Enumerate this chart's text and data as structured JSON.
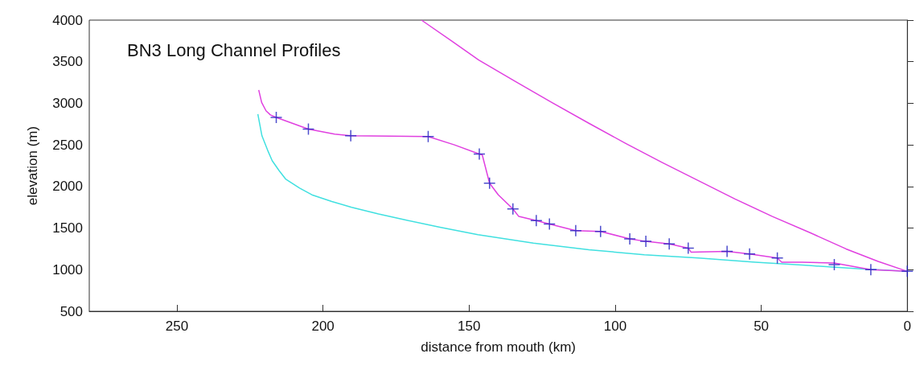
{
  "chart_data": {
    "type": "line",
    "title": "BN3 Long Channel Profiles",
    "xlabel": "distance from mouth (km)",
    "ylabel": "elevation (m)",
    "xlim": [
      280,
      0
    ],
    "xticks": [
      250,
      200,
      150,
      100,
      50,
      0
    ],
    "ylim": [
      500,
      4000
    ],
    "yticks": [
      500,
      1000,
      1500,
      2000,
      2500,
      3000,
      3500,
      4000
    ],
    "grid": false,
    "series": [
      {
        "color": "#e040e0",
        "marker": "none",
        "x": [
          166.3,
          156,
          146.7,
          134,
          121.7,
          109,
          96.5,
          84,
          71.5,
          59,
          46.2,
          33,
          21,
          10,
          0
        ],
        "values": [
          4000,
          3750,
          3520,
          3260,
          3010,
          2760,
          2520,
          2290,
          2070,
          1850,
          1640,
          1440,
          1250,
          1100,
          980
        ]
      },
      {
        "color": "#40e0e0",
        "marker": "none",
        "x": [
          222.3,
          220.9,
          219,
          217.4,
          215,
          212.8,
          208,
          203.8,
          197,
          190.2,
          181,
          172,
          160,
          147,
          128,
          109,
          90,
          71.5,
          52,
          33.7,
          16,
          0
        ],
        "values": [
          2870,
          2610,
          2440,
          2310,
          2190,
          2090,
          1980,
          1900,
          1820,
          1750,
          1670,
          1600,
          1510,
          1420,
          1320,
          1240,
          1180,
          1140,
          1090,
          1050,
          1010,
          980
        ]
      },
      {
        "color": "#e040e0",
        "marker": "none",
        "x": [
          222,
          221,
          219.5,
          218,
          216,
          205,
          196,
          190.5,
          164,
          155,
          146.5,
          145.5,
          143,
          140,
          135,
          133,
          127,
          122.5,
          113.5,
          105,
          95,
          89.5,
          81.5,
          75,
          74,
          61.7,
          54,
          44.5,
          43,
          36,
          25,
          12.5,
          0
        ],
        "values": [
          3160,
          3010,
          2910,
          2860,
          2830,
          2690,
          2630,
          2610,
          2600,
          2500,
          2390,
          2380,
          2040,
          1900,
          1730,
          1640,
          1590,
          1550,
          1470,
          1460,
          1370,
          1340,
          1310,
          1260,
          1210,
          1220,
          1190,
          1140,
          1090,
          1090,
          1080,
          1000,
          980
        ]
      },
      {
        "type": "scatter",
        "color": "#2020c0",
        "marker": "cross",
        "x": [
          216,
          205,
          190.5,
          164,
          146.5,
          143,
          135,
          127,
          122.5,
          113.5,
          105,
          95,
          89.5,
          81.5,
          75,
          61.7,
          54,
          44.5,
          25,
          12.5,
          0
        ],
        "values": [
          2830,
          2690,
          2610,
          2600,
          2390,
          2040,
          1730,
          1590,
          1550,
          1470,
          1460,
          1370,
          1340,
          1310,
          1260,
          1220,
          1190,
          1140,
          1060,
          1000,
          980
        ]
      }
    ]
  }
}
